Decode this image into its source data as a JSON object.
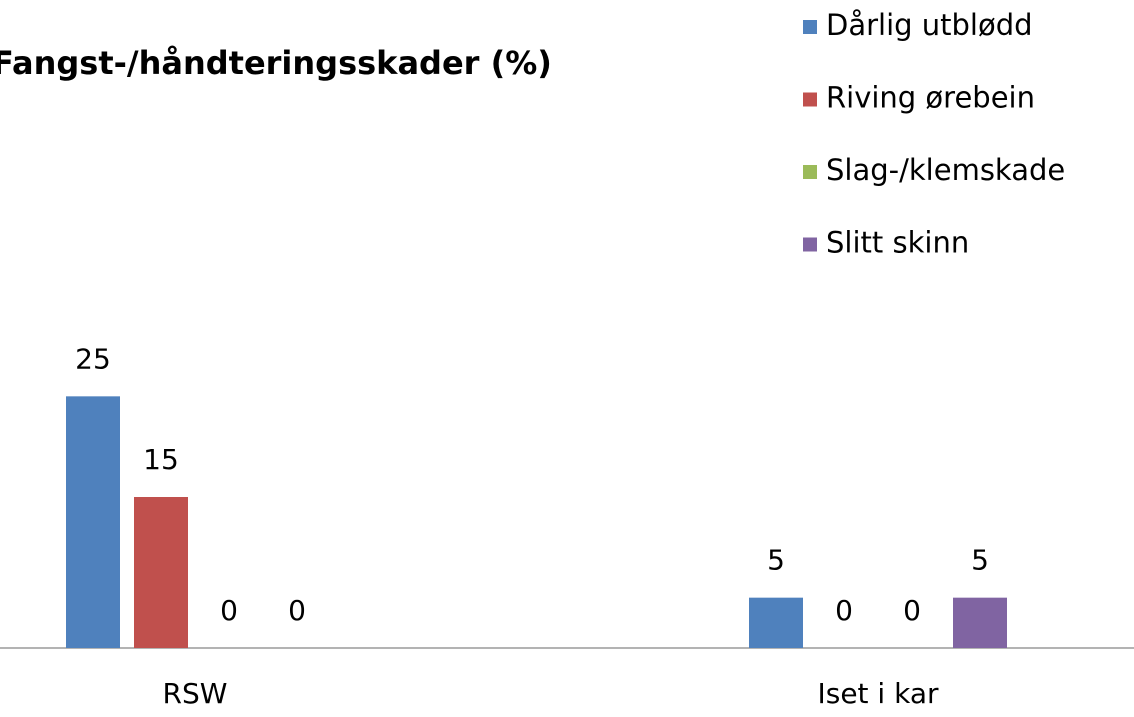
{
  "chart_data": {
    "type": "bar",
    "title": "Fangst-/håndteringsskader (%)",
    "categories": [
      "RSW",
      "Iset i kar"
    ],
    "series": [
      {
        "name": "Dårlig utblødd",
        "color": "#4f81bd",
        "values": [
          25,
          5
        ]
      },
      {
        "name": "Riving ørebein",
        "color": "#c0504d",
        "values": [
          15,
          0
        ]
      },
      {
        "name": "Slag-/klemskade",
        "color": "#9bbb59",
        "values": [
          0,
          0
        ]
      },
      {
        "name": "Slitt skinn",
        "color": "#8064a2",
        "values": [
          0,
          5
        ]
      }
    ],
    "ylim": [
      0,
      30
    ],
    "legend": "top-right"
  }
}
